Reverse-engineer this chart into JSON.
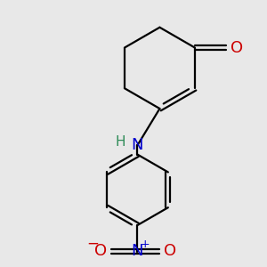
{
  "background_color": "#e8e8e8",
  "bond_color": "#000000",
  "N_color": "#0000cd",
  "O_color": "#cc0000",
  "H_color": "#2e8b57",
  "figsize": [
    3.0,
    3.0
  ],
  "dpi": 100,
  "bond_lw": 1.6,
  "double_sep": 0.09,
  "xlim": [
    0.0,
    10.0
  ],
  "ylim": [
    0.0,
    10.0
  ]
}
